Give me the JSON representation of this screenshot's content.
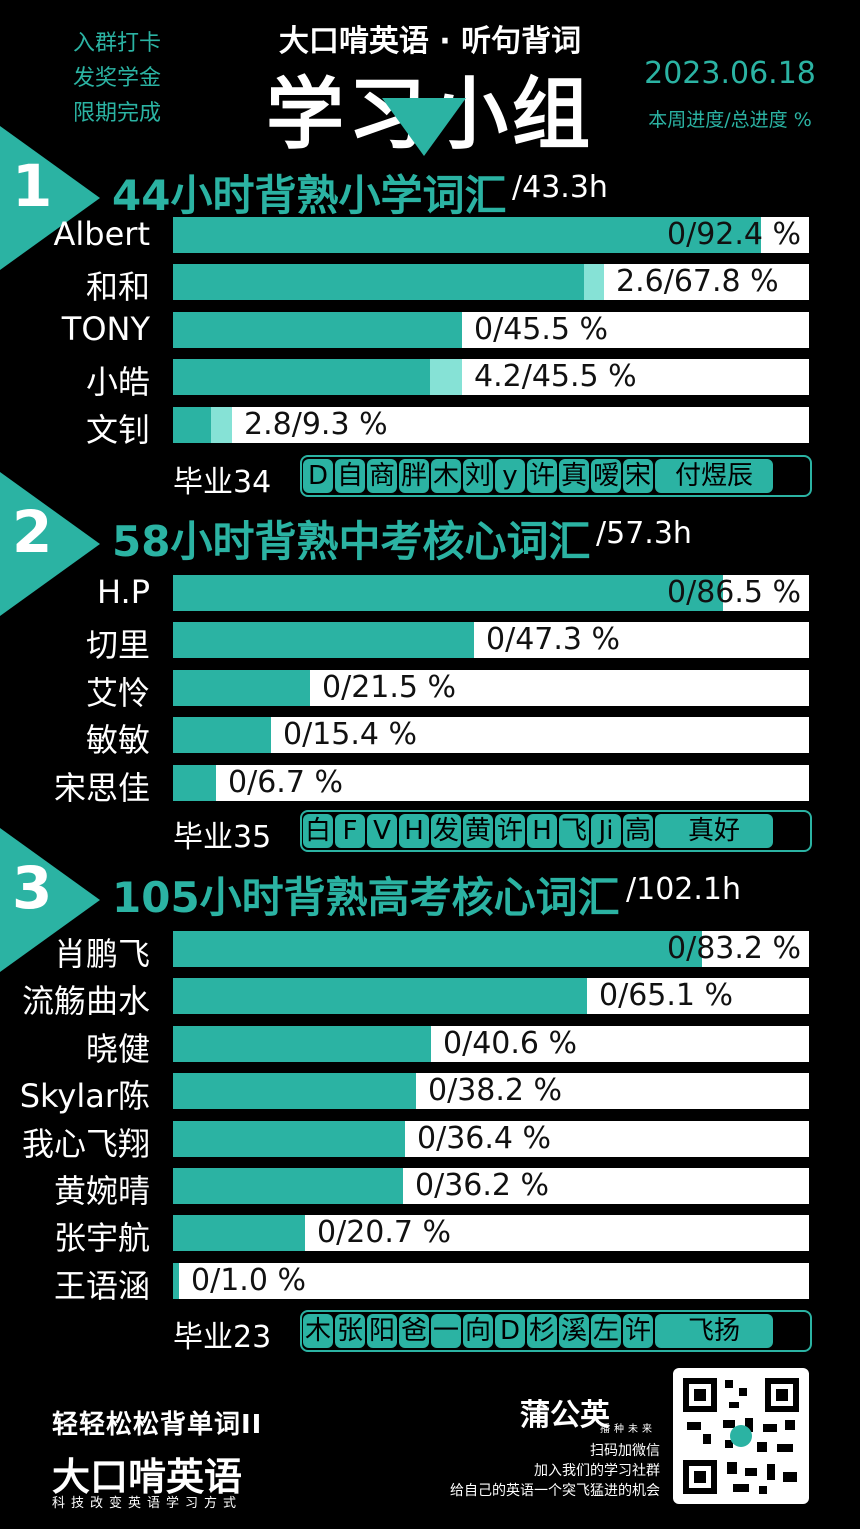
{
  "header": {
    "left_lines": [
      "入群打卡",
      "发奖学金",
      "限期完成"
    ],
    "brand_top": "大口啃英语 · 听句背词",
    "brand_main": "学习小组",
    "date": "2023.06.18",
    "progress_label": "本周进度/总进度 %"
  },
  "colors": {
    "accent": "#2bb3a3",
    "week": "#86e2d6",
    "background": "#000000"
  },
  "sections": [
    {
      "number": "1",
      "title": "44小时背熟小学词汇",
      "hours": "/43.3h",
      "rows": [
        {
          "name": "Albert",
          "week": 0,
          "total": 92.4,
          "label": "0/92.4 %"
        },
        {
          "name": "和和",
          "week": 2.6,
          "total": 67.8,
          "label": "2.6/67.8 %"
        },
        {
          "name": "TONY",
          "week": 0,
          "total": 45.5,
          "label": "0/45.5 %"
        },
        {
          "name": "小皓",
          "week": 4.2,
          "total": 45.5,
          "label": "4.2/45.5 %"
        },
        {
          "name": "文钊",
          "week": 2.8,
          "total": 9.3,
          "label": "2.8/9.3 %"
        }
      ],
      "graduated_label": "毕业34",
      "graduates": [
        "D",
        "自",
        "商",
        "胖",
        "木",
        "刘",
        "y",
        "许",
        "真",
        "嗳",
        "宋",
        "付煜辰"
      ]
    },
    {
      "number": "2",
      "title": "58小时背熟中考核心词汇",
      "hours": "/57.3h",
      "rows": [
        {
          "name": "H.P",
          "week": 0,
          "total": 86.5,
          "label": "0/86.5 %"
        },
        {
          "name": "切里",
          "week": 0,
          "total": 47.3,
          "label": "0/47.3 %"
        },
        {
          "name": "艾怜",
          "week": 0,
          "total": 21.5,
          "label": "0/21.5 %"
        },
        {
          "name": "敏敏",
          "week": 0,
          "total": 15.4,
          "label": "0/15.4 %"
        },
        {
          "name": "宋思佳",
          "week": 0,
          "total": 6.7,
          "label": "0/6.7 %"
        }
      ],
      "graduated_label": "毕业35",
      "graduates": [
        "白",
        "F",
        "V",
        "H",
        "发",
        "黄",
        "许",
        "H",
        "飞",
        "Ji",
        "高",
        "真好"
      ]
    },
    {
      "number": "3",
      "title": "105小时背熟高考核心词汇",
      "hours": "/102.1h",
      "rows": [
        {
          "name": "肖鹏飞",
          "week": 0,
          "total": 83.2,
          "label": "0/83.2 %"
        },
        {
          "name": "流觞曲水",
          "week": 0,
          "total": 65.1,
          "label": "0/65.1 %"
        },
        {
          "name": "晓健",
          "week": 0,
          "total": 40.6,
          "label": "0/40.6 %"
        },
        {
          "name": "Skylar陈",
          "week": 0,
          "total": 38.2,
          "label": "0/38.2 %"
        },
        {
          "name": "我心飞翔",
          "week": 0,
          "total": 36.4,
          "label": "0/36.4 %"
        },
        {
          "name": "黄婉晴",
          "week": 0,
          "total": 36.2,
          "label": "0/36.2 %"
        },
        {
          "name": "张宇航",
          "week": 0,
          "total": 20.7,
          "label": "0/20.7 %"
        },
        {
          "name": "王语涵",
          "week": 0,
          "total": 1.0,
          "label": "0/1.0 %"
        }
      ],
      "graduated_label": "毕业23",
      "graduates": [
        "木",
        "张",
        "阳",
        "爸",
        "一",
        "向",
        "D",
        "杉",
        "溪",
        "左",
        "许",
        "飞扬"
      ]
    }
  ],
  "footer": {
    "logo_line1": "轻轻松松背单词II",
    "logo_line2": "大口啃英语",
    "logo_line3": "科技改变英语学习方式",
    "pgy_name": "蒲公英",
    "pgy_sub": "播种未来",
    "wechat_lines": [
      "扫码加微信",
      "加入我们的学习社群",
      "给自己的英语一个突飞猛进的机会"
    ]
  }
}
